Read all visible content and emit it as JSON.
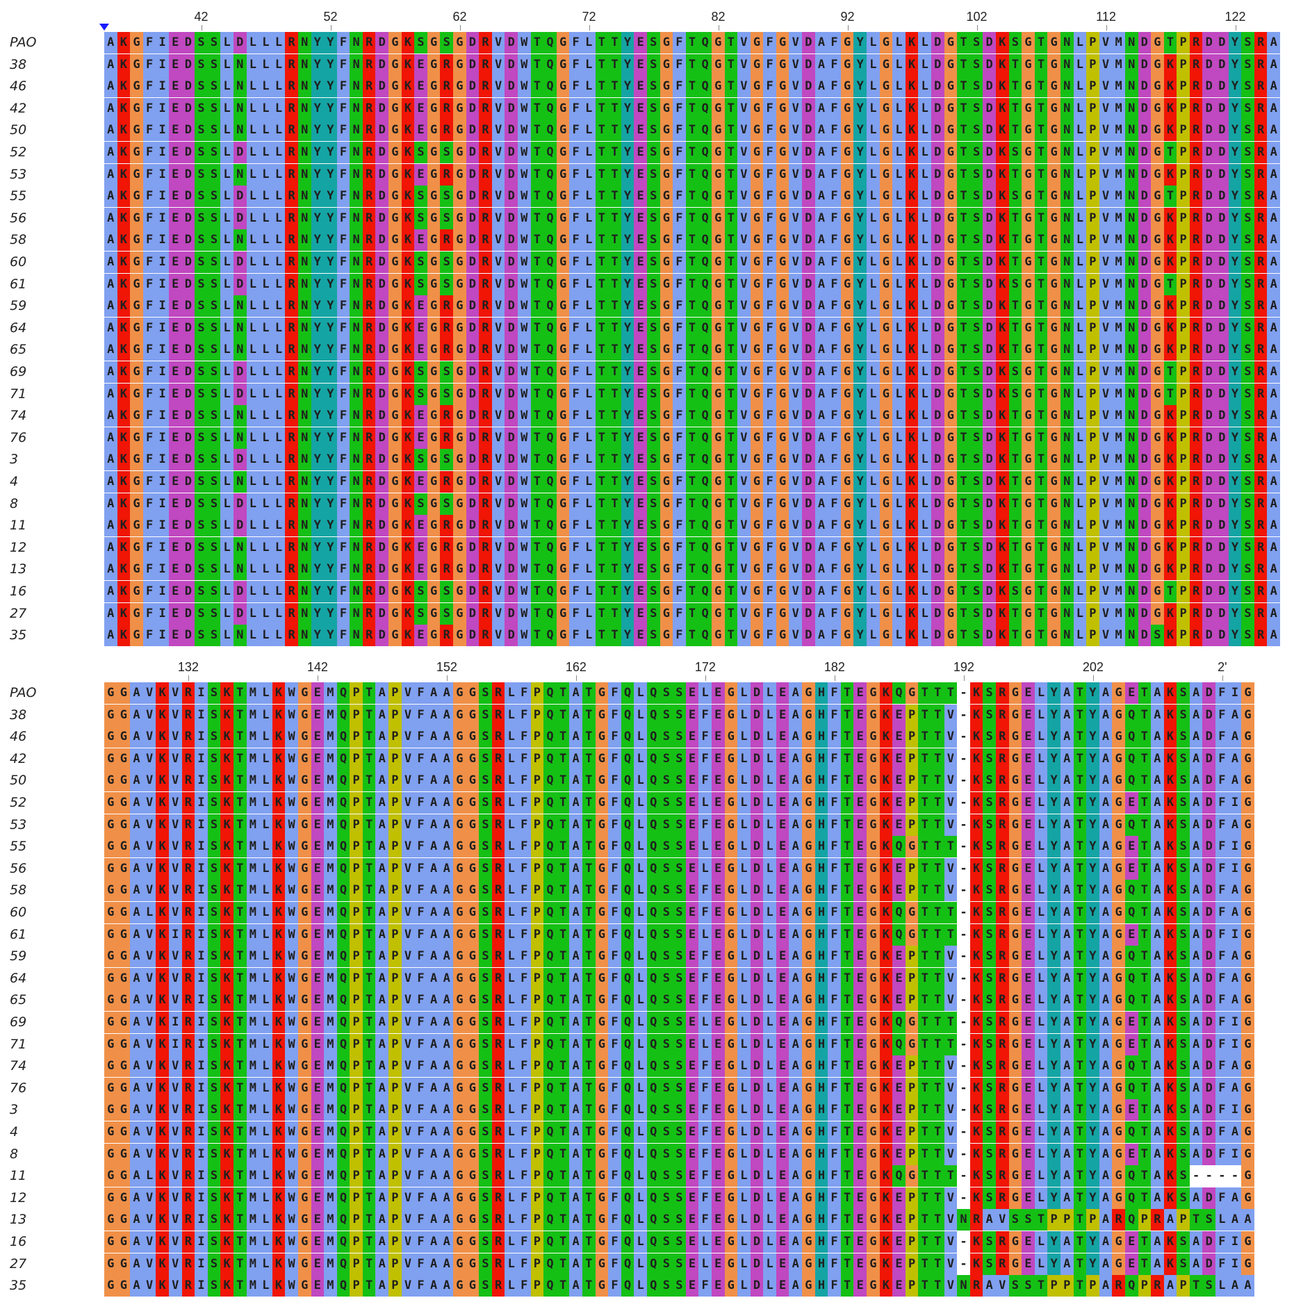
{
  "colors": {
    "hydrophobic": "#80a0f0",
    "basic": "#f01505",
    "acidic": "#c048c0",
    "polar": "#15c015",
    "cysteine": "#f08080",
    "glycine": "#f09048",
    "proline": "#c0c000",
    "aromatic": "#15a4a4",
    "gap": "#ffffff"
  },
  "names": [
    "PAO",
    "38",
    "46",
    "42",
    "50",
    "52",
    "53",
    "55",
    "56",
    "58",
    "60",
    "61",
    "59",
    "64",
    "65",
    "69",
    "71",
    "74",
    "76",
    "3",
    "4",
    "8",
    "11",
    "12",
    "13",
    "16",
    "27",
    "35"
  ],
  "block1": {
    "ruler": [
      "42",
      "52",
      "62",
      "72",
      "82",
      "92",
      "102",
      "112",
      "122"
    ],
    "rows": [
      "AKGFIEDSSLDLLLRNYYFNRDGKSGSGDRVDWTQGFLTTYESGFTQGTVGFGVDAFGYLGLKLDGTSDKSGTGNLPVMNDGTPRDDYSRA",
      "AKGFIEDSSLNLLLRNYYFNRDGKEGRGDRVDWTQGFLTTYESGFTQGTVGFGVDAFGYLGLKLDGTSDKTGTGNLPVMNDGKPRDDYSRA",
      "AKGFIEDSSLNLLLRNYYFNRDGKEGRGDRVDWTQGFLTTYESGFTQGTVGFGVDAFGYLGLKLDGTSDKTGTGNLPVMNDGKPRDDYSRA",
      "AKGFIEDSSLNLLLRNYYFNRDGKEGRGDRVDWTQGFLTTYESGFTQGTVGFGVDAFGYLGLKLDGTSDKTGTGNLPVMNDGKPRDDYSRA",
      "AKGFIEDSSLNLLLRNYYFNRDGKEGRGDRVDWTQGFLTTYESGFTQGTVGFGVDAFGYLGLKLDGTSDKTGTGNLPVMNDGKPRDDYSRA",
      "AKGFIEDSSLDLLLRNYYFNRDGKSGSGDRVDWTQGFLTTYESGFTQGTVGFGVDAFGYLGLKLDGTSDKSGTGNLPVMNDGTPRDDYSRA",
      "AKGFIEDSSLNLLLRNYYFNRDGKEGRGDRVDWTQGFLTTYESGFTQGTVGFGVDAFGYLGLKLDGTSDKTGTGNLPVMNDGKPRDDYSRA",
      "AKGFIEDSSLDLLLRNYYFNRDGKSGSGDRVDWTQGFLTTYESGFTQGTVGFGVDAFGYLGLKLDGTSDKSGTGNLPVMNDGTPRDDYSRA",
      "AKGFIEDSSLDLLLRNYYFNRDGKSGSGDRVDWTQGFLTTYESGFTQGTVGFGVDAFGYLGLKLDGTSDKTGTGNLPVMNDGKPRDDYSRA",
      "AKGFIEDSSLNLLLRNYYFNRDGKEGRGDRVDWTQGFLTTYESGFTQGTVGFGVDAFGYLGLKLDGTSDKTGTGNLPVMNDGKPRDDYSRA",
      "AKGFIEDSSLDLLLRNYYFNRDGKSGSGDRVDWTQGFLTTYESGFTQGTVGFGVDAFGYLGLKLDGTSDKTGTGNLPVMNDGKPRDDYSRA",
      "AKGFIEDSSLDLLLRNYYFNRDGKSGSGDRVDWTQGFLTTYESGFTQGTVGFGVDAFGYLGLKLDGTSDKSGTGNLPVMNDGTPRDDYSRA",
      "AKGFIEDSSLNLLLRNYYFNRDGKEGRGDRVDWTQGFLTTYESGFTQGTVGFGVDAFGYLGLKLDGTSDKTGTGNLPVMNDGKPRDDYSRA",
      "AKGFIEDSSLNLLLRNYYFNRDGKEGRGDRVDWTQGFLTTYESGFTQGTVGFGVDAFGYLGLKLDGTSDKTGTGNLPVMNDGKPRDDYSRA",
      "AKGFIEDSSLNLLLRNYYFNRDGKEGRGDRVDWTQGFLTTYESGFTQGTVGFGVDAFGYLGLKLDGTSDKTGTGNLPVMNDGKPRDDYSRA",
      "AKGFIEDSSLDLLLRNYYFNRDGKSGSGDRVDWTQGFLTTYESGFTQGTVGFGVDAFGYLGLKLDGTSDKSGTGNLPVMNDGTPRDDYSRA",
      "AKGFIEDSSLDLLLRNYYFNRDGKSGSGDRVDWTQGFLTTYESGFTQGTVGFGVDAFGYLGLKLDGTSDKSGTGNLPVMNDGTPRDDYSRA",
      "AKGFIEDSSLNLLLRNYYFNRDGKEGRGDRVDWTQGFLTTYESGFTQGTVGFGVDAFGYLGLKLDGTSDKTGTGNLPVMNDGKPRDDYSRA",
      "AKGFIEDSSLNLLLRNYYFNRDGKEGRGDRVDWTQGFLTTYESGFTQGTVGFGVDAFGYLGLKLDGTSDKTGTGNLPVMNDGKPRDDYSRA",
      "AKGFIEDSSLDLLLRNYYFNRDGKSGSGDRVDWTQGFLTTYESGFTQGTVGFGVDAFGYLGLKLDGTSDKTGTGNLPVMNDGKPRDDYSRA",
      "AKGFIEDSSLNLLLRNYYFNRDGKEGRGDRVDWTQGFLTTYESGFTQGTVGFGVDAFGYLGLKLDGTSDKTGTGNLPVMNDGKPRDDYSRA",
      "AKGFIEDSSLDLLLRNYYFNRDGKSGSGDRVDWTQGFLTTYESGFTQGTVGFGVDAFGYLGLKLDGTSDKTGTGNLPVMNDGKPRDDYSRA",
      "AKGFIEDSSLDLLLRNYYFNRDGKEGRGDRVDWTQGFLTTYESGFTQGTVGFGVDAFGYLGLKLDGTSDKTGTGNLPVMNDGKPRDDYSRA",
      "AKGFIEDSSLNLLLRNYYFNRDGKEGRGDRVDWTQGFLTTYESGFTQGTVGFGVDAFGYLGLKLDGTSDKTGTGNLPVMNDGKPRDDYSRA",
      "AKGFIEDSSLNLLLRNYYFNRDGKEGRGDRVDWTQGFLTTYESGFTQGTVGFGVDAFGYLGLKLDGTSDKTGTGNLPVMNDGKPRDDYSRA",
      "AKGFIEDSSLDLLLRNYYFNRDGKSGSGDRVDWTQGFLTTYESGFTQGTVGFGVDAFGYLGLKLDGTSDKSGTGNLPVMNDGTPRDDYSRA",
      "AKGFIEDSSLDLLLRNYYFNRDGKSGSGDRVDWTQGFLTTYESGFTQGTVGFGVDAFGYLGLKLDGTSDKTGTGNLPVMNDGKPRDDYSRA",
      "AKGFIEDSSLNLLLRNYYFNRDGKEGRGDRVDWTQGFLTTYESGFTQGTVGFGVDAFGYLGLKLDGTSDKTGTGNLPVMNDSKPRDDYSRA"
    ]
  },
  "block2": {
    "ruler": [
      "132",
      "142",
      "152",
      "162",
      "172",
      "182",
      "192",
      "202",
      "2'"
    ],
    "rows": [
      "GGAVKVRISKTMLKWGEMQPTAPVFAAGGSRLFPQTATGFQLQSSELEGLDLEAGHFTEGKQGTTT-KSRGELYATYAGETAKSADFIG",
      "GGAVKVRISKTMLKWGEMQPTAPVFAAGGSRLFPQTATGFQLQSSEFEGLDLEAGHFTEGKEPTTV-KSRGELYATYAGQTAKSADFAG",
      "GGAVKVRISKTMLKWGEMQPTAPVFAAGGSRLFPQTATGFQLQSSEFEGLDLEAGHFTEGKEPTTV-KSRGELYATYAGQTAKSADFAG",
      "GGAVKVRISKTMLKWGEMQPTAPVFAAGGSRLFPQTATGFQLQSSEFEGLDLEAGHFTEGKEPTTV-KSRGELYATYAGQTAKSADFAG",
      "GGAVKVRISKTMLKWGEMQPTAPVFAAGGSRLFPQTATGFQLQSSEFEGLDLEAGHFTEGKEPTTV-KSRGELYATYAGQTAKSADFAG",
      "GGAVKVRISKTMLKWGEMQPTAPVFAAGGSRLFPQTATGFQLQSSELEGLDLEAGHFTEGKEPTTV-KSRGELYATYAGETAKSADFIG",
      "GGAVKVRISKTMLKWGEMQPTAPVFAAGGSRLFPQTATGFQLQSSEFEGLDLEAGHFTEGKEPTTV-KSRGELYATYAGQTAKSADFAG",
      "GGAVKVRISKTMLKWGEMQPTAPVFAAGGSRLFPQTATGFQLQSSELEGLDLEAGHFTEGKQGTTT-KSRGELYATYAGETAKSADFIG",
      "GGAVKVRISKTMLKWGEMQPTAPVFAAGGSRLFPQTATGFQLQSSELEGLDLEAGHFTEGKEPTTV-KSRGELYATYAGETAKSADFIG",
      "GGAVKVRISKTMLKWGEMQPTAPVFAAGGSRLFPQTATGFQLQSSEFEGLDLEAGHFTEGKEPTTV-KSRGELYATYAGQTAKSADFAG",
      "GGALKVRISKTMLKWGEMQPTAPVFAAGGSRLFPQTATGFQLQSSEFEGLDLEAGHFTEGKQGTTT-KSRGELYATYAGQTAKSADFAG",
      "GGAVKIRISKTMLKWGEMQPTAPVFAAGGSRLFPQTATGFQLQSSELEGLDLEAGHFTEGKQGTTT-KSRGELYATYAGETAKSADFIG",
      "GGAVKVRISKTMLKWGEMQPTAPVFAAGGSRLFPQTATGFQLQSSEFEGLDLEAGHFTEGKEPTTV-KSRGELYATYAGQTAKSADFAG",
      "GGAVKVRISKTMLKWGEMQPTAPVFAAGGSRLFPQTATGFQLQSSEFEGLDLEAGHFTEGKEPTTV-KSRGELYATYAGQTAKSADFAG",
      "GGAVKVRISKTMLKWGEMQPTAPVFAAGGSRLFPQTATGFQLQSSEFEGLDLEAGHFTEGKEPTTV-KSRGELYATYAGQTAKSADFAG",
      "GGAVKIRISKTMLKWGEMQPTAPVFAAGGSRLFPQTATGFQLQSSELEGLDLEAGHFTEGKQGTTT-KSRGELYATYAGETAKSADFIG",
      "GGAVKIRISKTMLKWGEMQPTAPVFAAGGSRLFPQTATGFQLQSSELEGLDLEAGHFTEGKQGTTT-KSRGELYATYAGETAKSADFIG",
      "GGAVKVRISKTMLKWGEMQPTAPVFAAGGSRLFPQTATGFQLQSSEFEGLDLEAGHFTEGKEPTTV-KSRGELYATYAGQTAKSADFAG",
      "GGAVKVRISKTMLKWGEMQPTAPVFAAGGSRLFPQTATGFQLQSSEFEGLDLEAGHFTEGKEPTTV-KSRGELYATYAGQTAKSADFAG",
      "GGAVKVRISKTMLKWGEMQPTAPVFAAGGSRLFPQTATGFQLQSSEFEGLDLEAGHFTEGKEPTTV-KSRGELYATYAGETAKSADFIG",
      "GGAVKVRISKTMLKWGEMQPTAPVFAAGGSRLFPQTATGFQLQSSEFEGLDLEAGHFTEGKEPTTV-KSRGELYATYAGQTAKSADFAG",
      "GGAVKVRISKTMLKWGEMQPTAPVFAAGGSRLFPQTATGFQLQSSEFEGLDLEAGHFTEGKEPTTV-KSRGELYATYAGETAKSADFIG",
      "GGALKVRISKTMLKWGEMQPTAPVFAAGGSRLFPQTATGFQLQSSEFEGLDLEAGHFTEGKQGTTT-KSRGELYATYAGQTAKS----G",
      "GGAVKVRISKTMLKWGEMQPTAPVFAAGGSRLFPQTATGFQLQSSEFEGLDLEAGHFTEGKEPTTV-KSRGELYATYAGQTAKSADFAG",
      "GGAVKVRISKTMLKWGEMQPTAPVFAAGGSRLFPQTATGFQLQSSEFEGLDLEAGHFTEGKEPTTVNRAVSSTPPTPARQPRAPTSLAA",
      "GGAVKVRISKTMLKWGEMQPTAPVFAAGGSRLFPQTATGFQLQSSELEGLDLEAGHFTEGKEPTTV-KSRGELYATYAGETAKSADFIG",
      "GGAVKVRISKTMLKWGEMQPTAPVFAAGGSRLFPQTATGFQLQSSELEGLDLEAGHFTEGKEPTTV-KSRGELYATYAGETAKSADFIG",
      "GGAVKVRISKTMLKWGEMQPTAPVFAAGGSRLFPQTATGFQLQSSEFEGLDLEAGHFTEGKEPTTVNRAVSSTPPTPARQPRAPTSLAA"
    ]
  }
}
